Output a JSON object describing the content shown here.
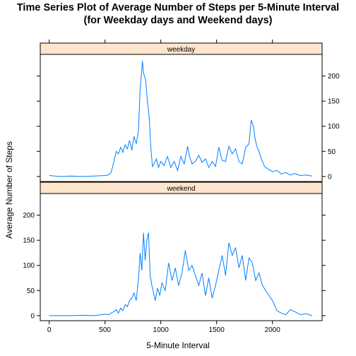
{
  "title": "Time Series Plot of Average Number of Steps per 5-Minute Interval",
  "subtitle": "(for Weekday days and Weekend days)",
  "chart_data": {
    "type": "line",
    "title": "Time Series Plot of Average Number of Steps per 5-Minute Interval",
    "subtitle": "(for Weekday days and Weekend days)",
    "xlabel": "5-Minute Interval",
    "ylabel": "Average Number of Steps",
    "xlim": [
      -80,
      2445
    ],
    "ylim": [
      -10,
      243
    ],
    "x_ticks": [
      0,
      500,
      1000,
      1500,
      2000
    ],
    "y_ticks": [
      0,
      50,
      100,
      150,
      200
    ],
    "line_color": "#0080ff",
    "strip_color": "#ffe5cc",
    "grid": false,
    "panels": [
      {
        "name": "weekday",
        "y_axis_side": "right",
        "x": [
          0,
          100,
          200,
          300,
          400,
          500,
          530,
          555,
          580,
          600,
          620,
          640,
          660,
          680,
          700,
          720,
          740,
          760,
          780,
          800,
          815,
          825,
          835,
          845,
          855,
          865,
          880,
          895,
          910,
          925,
          940,
          960,
          980,
          1000,
          1030,
          1060,
          1090,
          1120,
          1150,
          1180,
          1210,
          1240,
          1260,
          1280,
          1310,
          1340,
          1370,
          1400,
          1430,
          1460,
          1490,
          1520,
          1550,
          1580,
          1610,
          1640,
          1670,
          1700,
          1730,
          1760,
          1790,
          1810,
          1830,
          1845,
          1860,
          1880,
          1900,
          1930,
          1960,
          2000,
          2040,
          2080,
          2120,
          2160,
          2200,
          2250,
          2300,
          2355
        ],
        "values": [
          2,
          0,
          1,
          0,
          1,
          2,
          3,
          8,
          30,
          50,
          45,
          58,
          48,
          63,
          55,
          72,
          52,
          80,
          65,
          92,
          175,
          200,
          230,
          205,
          200,
          190,
          150,
          120,
          60,
          20,
          25,
          35,
          18,
          30,
          22,
          40,
          18,
          30,
          12,
          40,
          25,
          60,
          38,
          25,
          30,
          42,
          28,
          35,
          18,
          30,
          20,
          58,
          32,
          30,
          60,
          45,
          55,
          30,
          25,
          58,
          65,
          112,
          100,
          75,
          60,
          50,
          35,
          20,
          15,
          10,
          12,
          5,
          8,
          3,
          6,
          2,
          3,
          1
        ]
      },
      {
        "name": "weekend",
        "y_axis_side": "left",
        "x": [
          0,
          100,
          200,
          300,
          400,
          500,
          530,
          555,
          580,
          600,
          620,
          640,
          660,
          680,
          700,
          720,
          740,
          760,
          780,
          800,
          815,
          830,
          845,
          860,
          875,
          890,
          905,
          920,
          935,
          950,
          970,
          990,
          1010,
          1040,
          1070,
          1100,
          1130,
          1160,
          1190,
          1220,
          1250,
          1280,
          1310,
          1340,
          1370,
          1400,
          1430,
          1460,
          1490,
          1520,
          1550,
          1580,
          1610,
          1640,
          1670,
          1700,
          1730,
          1760,
          1790,
          1820,
          1850,
          1880,
          1910,
          1940,
          1970,
          2000,
          2040,
          2080,
          2120,
          2160,
          2200,
          2250,
          2300,
          2355
        ],
        "values": [
          0,
          0,
          0,
          1,
          0,
          3,
          2,
          5,
          8,
          12,
          5,
          15,
          10,
          22,
          18,
          30,
          35,
          45,
          30,
          75,
          125,
          90,
          165,
          110,
          150,
          165,
          80,
          60,
          45,
          30,
          55,
          40,
          65,
          50,
          105,
          70,
          95,
          60,
          85,
          130,
          90,
          100,
          80,
          60,
          85,
          40,
          75,
          35,
          60,
          90,
          120,
          80,
          145,
          120,
          135,
          95,
          120,
          70,
          115,
          105,
          70,
          85,
          60,
          50,
          40,
          30,
          10,
          5,
          2,
          12,
          8,
          2,
          4,
          0
        ]
      }
    ]
  }
}
